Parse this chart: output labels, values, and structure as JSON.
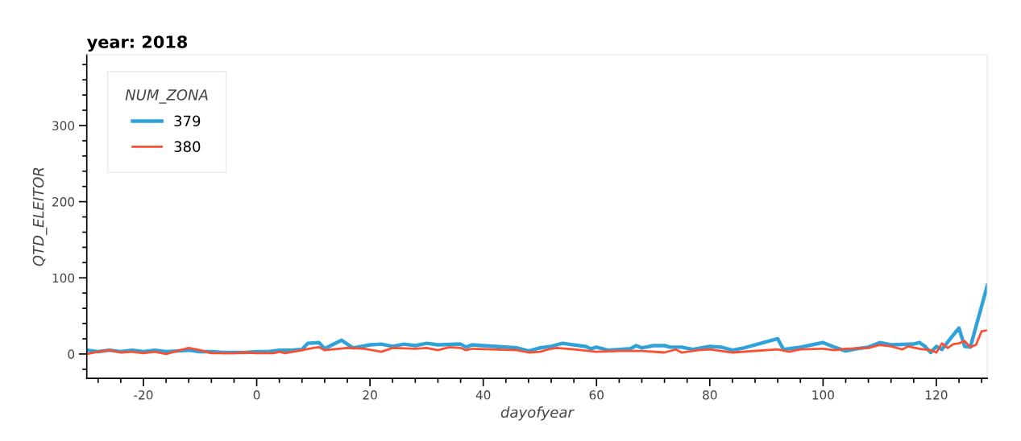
{
  "chart_data": {
    "type": "line",
    "title": "year: 2018",
    "xlabel": "dayofyear",
    "ylabel": "QTD_ELEITOR",
    "legend_title": "NUM_ZONA",
    "legend": "top left",
    "grid": false,
    "xlim": [
      -30,
      129
    ],
    "ylim": [
      -32,
      393
    ],
    "xticks": [
      -20,
      0,
      20,
      40,
      60,
      80,
      100,
      120
    ],
    "yticks": [
      0,
      100,
      200,
      300
    ],
    "series": [
      {
        "name": "379",
        "color": "#30a2da",
        "x": [
          -30,
          -28,
          -26,
          -24,
          -22,
          -20,
          -18,
          -16,
          -14,
          -12,
          -10,
          -8,
          -6,
          -4,
          -2,
          0,
          2,
          4,
          6,
          8,
          9,
          11,
          12,
          15,
          17,
          20,
          22,
          24,
          26,
          28,
          30,
          32,
          36,
          37,
          38,
          40,
          46,
          48,
          50,
          52,
          54,
          58,
          59,
          60,
          62,
          66,
          67,
          68,
          70,
          72,
          73,
          75,
          77,
          80,
          82,
          84,
          86,
          92,
          93,
          96,
          100,
          102,
          104,
          106,
          108,
          110,
          112,
          116,
          117,
          118,
          119,
          120,
          121,
          123,
          124,
          125,
          126,
          129
        ],
        "values": [
          5,
          3,
          5,
          3,
          5,
          3,
          5,
          3,
          4,
          5,
          3,
          3,
          2,
          2,
          2,
          3,
          3,
          5,
          5,
          6,
          14,
          15,
          7,
          18,
          8,
          12,
          13,
          10,
          13,
          11,
          14,
          12,
          13,
          9,
          12,
          11,
          8,
          4,
          8,
          10,
          14,
          10,
          7,
          9,
          5,
          7,
          11,
          8,
          11,
          11,
          9,
          9,
          6,
          10,
          9,
          5,
          8,
          20,
          6,
          9,
          15,
          9,
          4,
          7,
          9,
          15,
          12,
          13,
          15,
          10,
          2,
          10,
          6,
          25,
          34,
          10,
          9,
          90
        ]
      },
      {
        "name": "380",
        "color": "#fc4f30",
        "x": [
          -30,
          -28,
          -26,
          -24,
          -22,
          -20,
          -18,
          -16,
          -14,
          -12,
          -10,
          -8,
          -6,
          -4,
          -2,
          0,
          3,
          4,
          5,
          8,
          10,
          11,
          12,
          16,
          19,
          22,
          24,
          28,
          30,
          32,
          34,
          36,
          37,
          38,
          46,
          48,
          50,
          52,
          53,
          56,
          60,
          64,
          68,
          72,
          74,
          75,
          78,
          80,
          84,
          92,
          94,
          96,
          100,
          102,
          104,
          108,
          110,
          112,
          114,
          115,
          117,
          119,
          120,
          121,
          122,
          123,
          124,
          125,
          126,
          127,
          128,
          129
        ],
        "values": [
          0,
          3,
          5,
          2,
          3,
          1,
          3,
          0,
          4,
          8,
          5,
          1,
          1,
          1,
          2,
          1,
          1,
          3,
          1,
          5,
          8,
          9,
          5,
          8,
          7,
          3,
          8,
          7,
          8,
          5,
          9,
          8,
          5,
          7,
          5,
          2,
          3,
          7,
          8,
          6,
          3,
          4,
          4,
          2,
          6,
          2,
          5,
          6,
          2,
          6,
          3,
          6,
          7,
          5,
          7,
          8,
          12,
          10,
          6,
          10,
          7,
          5,
          2,
          14,
          8,
          13,
          14,
          17,
          9,
          12,
          30,
          31
        ]
      }
    ]
  }
}
